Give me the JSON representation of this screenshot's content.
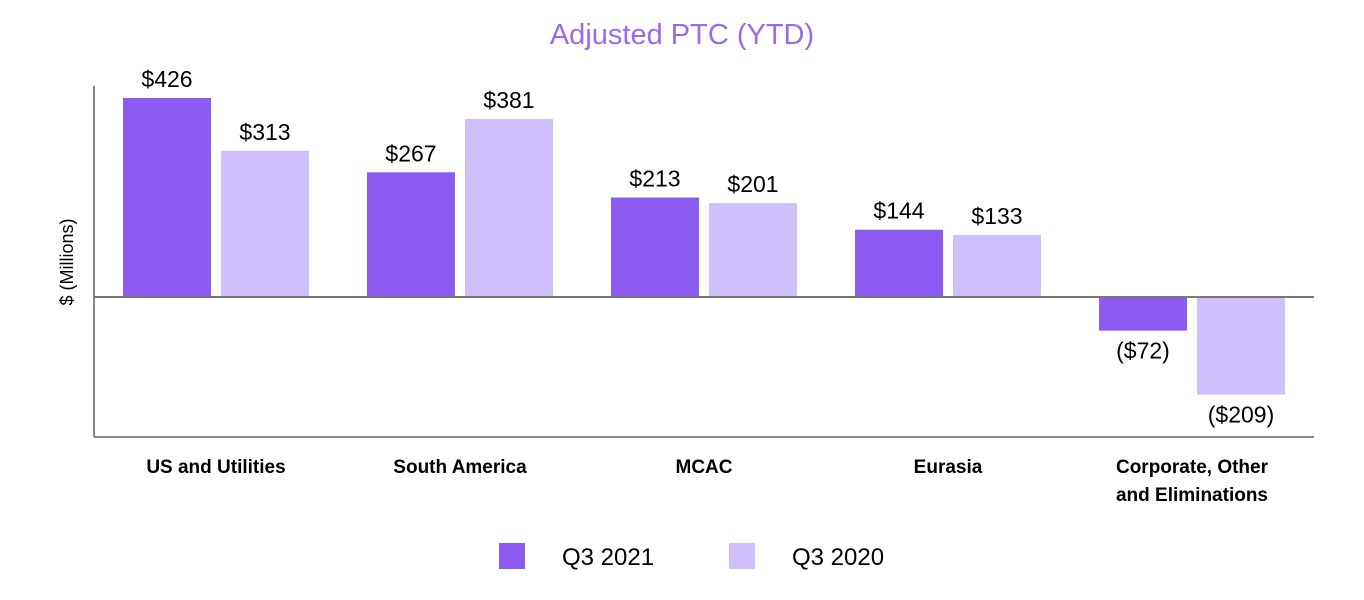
{
  "chart_data": {
    "type": "bar",
    "title": "Adjusted PTC (YTD)",
    "ylabel": "$ (Millions)",
    "xlabel": "",
    "ylim": [
      -235,
      460
    ],
    "categories": [
      [
        "US and Utilities"
      ],
      [
        "South America"
      ],
      [
        "MCAC"
      ],
      [
        "Eurasia"
      ],
      [
        "Corporate, Other",
        "and Eliminations"
      ]
    ],
    "series": [
      {
        "name": "Q3 2021",
        "color": "#8c5cf2",
        "values": [
          426,
          267,
          213,
          144,
          -72
        ],
        "labels": [
          "$426",
          "$267",
          "$213",
          "$144",
          "($72)"
        ]
      },
      {
        "name": "Q3 2020",
        "color": "#cfbffa",
        "values": [
          313,
          381,
          201,
          133,
          -209
        ],
        "labels": [
          "$313",
          "$381",
          "$201",
          "$133",
          "($209)"
        ]
      }
    ],
    "title_color": "#9b6ae8",
    "legend_position": "bottom-center"
  }
}
